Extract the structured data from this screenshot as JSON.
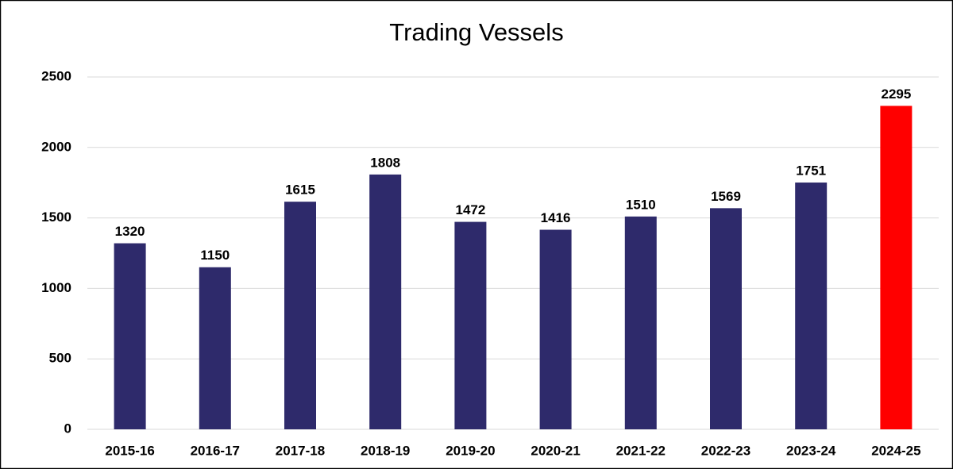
{
  "chart_data": {
    "type": "bar",
    "title": "Trading Vessels",
    "categories": [
      "2015-16",
      "2016-17",
      "2017-18",
      "2018-19",
      "2019-20",
      "2020-21",
      "2021-22",
      "2022-23",
      "2023-24",
      "2024-25"
    ],
    "values": [
      1320,
      1150,
      1615,
      1808,
      1472,
      1416,
      1510,
      1569,
      1751,
      2295
    ],
    "colors": [
      "#2e2a6b",
      "#2e2a6b",
      "#2e2a6b",
      "#2e2a6b",
      "#2e2a6b",
      "#2e2a6b",
      "#2e2a6b",
      "#2e2a6b",
      "#2e2a6b",
      "#ff0000"
    ],
    "ylim": [
      0,
      2500
    ],
    "yticks": [
      0,
      500,
      1000,
      1500,
      2000,
      2500
    ],
    "grid": true
  }
}
